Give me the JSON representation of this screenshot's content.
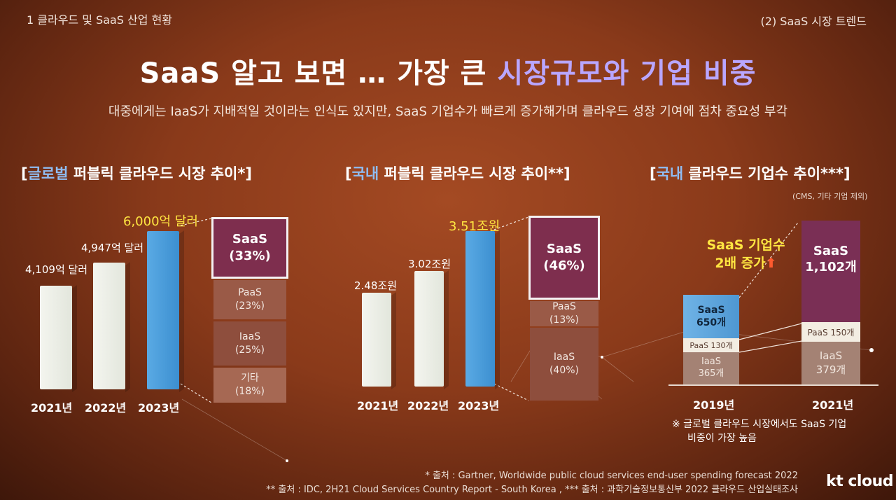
{
  "header": {
    "breadcrumb": "1 클라우드 및 SaaS 산업 현황",
    "section": "(2) SaaS 시장 트렌드"
  },
  "title": {
    "part1": "SaaS 알고 보면 … 가장 큰 ",
    "highlight": "시장규모와 기업 비중"
  },
  "subtitle": "대중에게는 IaaS가 지배적일 것이라는 인식도 있지만, SaaS 기업수가 빠르게 증가해가며 클라우드 성장 기여에 점차 중요성 부각",
  "charts": {
    "global": {
      "title_open": "[",
      "title_hl": "글로벌",
      "title_rest": " 퍼블릭 클라우드 시장 추이*]",
      "bars": [
        {
          "year": "2021년",
          "value_label": "4,109억 달러"
        },
        {
          "year": "2022년",
          "value_label": "4,947억 달러"
        },
        {
          "year": "2023년",
          "value_label": "6,000억 달러"
        }
      ],
      "breakdown": [
        {
          "name": "SaaS",
          "pct": "(33%)"
        },
        {
          "name": "PaaS",
          "pct": "(23%)"
        },
        {
          "name": "IaaS",
          "pct": "(25%)"
        },
        {
          "name": "기타",
          "pct": "(18%)"
        }
      ]
    },
    "domestic": {
      "title_open": "[",
      "title_hl": "국내",
      "title_rest": " 퍼블릭 클라우드 시장 추이**]",
      "bars": [
        {
          "year": "2021년",
          "value_label": "2.48조원"
        },
        {
          "year": "2022년",
          "value_label": "3.02조원"
        },
        {
          "year": "2023년",
          "value_label": "3.51조원"
        }
      ],
      "breakdown": [
        {
          "name": "SaaS",
          "pct": "(46%)"
        },
        {
          "name": "PaaS",
          "pct": "(13%)"
        },
        {
          "name": "IaaS",
          "pct": "(40%)"
        }
      ]
    },
    "companies": {
      "title_open": "[",
      "title_hl": "국내",
      "title_rest": " 클라우드 기업수 추이***]",
      "note": "(CMS, 기타 기업 제외)",
      "y2019": {
        "year": "2019년",
        "saas": "SaaS",
        "saas_count": "650개",
        "paas": "PaaS 130개",
        "iaas": "IaaS",
        "iaas_count": "365개"
      },
      "y2021": {
        "year": "2021년",
        "saas": "SaaS",
        "saas_count": "1,102개",
        "paas": "PaaS 150개",
        "iaas": "IaaS",
        "iaas_count": "379개"
      },
      "callout_line1": "SaaS 기업수",
      "callout_line2": "2배 증가",
      "remark_line1": "※ 글로벌 클라우드 시장에서도 SaaS 기업",
      "remark_line2": "비중이 가장 높음"
    }
  },
  "footnotes": {
    "f1": "* 출처 : Gartner, Worldwide public cloud services end-user spending forecast 2022",
    "f2": "** 출처 : IDC, 2H21 Cloud Services Country Report - South Korea ,  *** 출처 : 과학기술정보통신부 2022 클라우드 산업실태조사"
  },
  "logo": "kt cloud",
  "colors": {
    "highlight_purple": "#b9a6ff",
    "highlight_blue": "#8fbcf2",
    "accent_yellow": "#ffe641",
    "saas_box": "#7e2e4e",
    "bar_blue": "#4a9ddb"
  }
}
